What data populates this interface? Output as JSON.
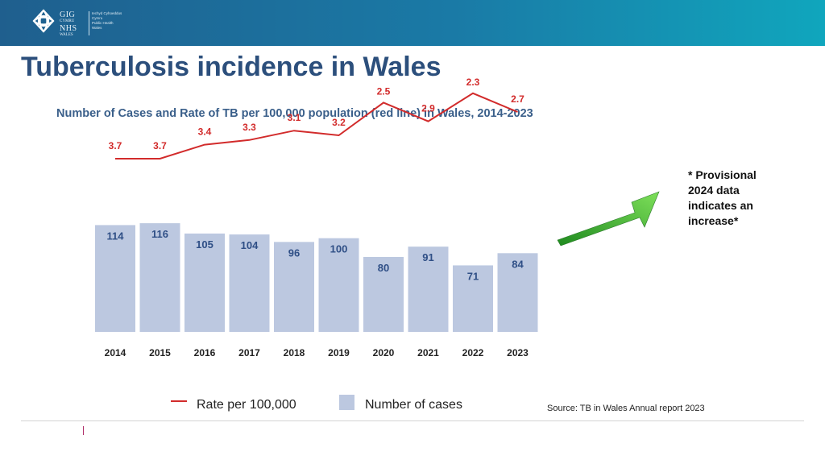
{
  "header": {
    "logo_left_lines": [
      "GIG",
      "CYMRU",
      "NHS",
      "WALES"
    ],
    "logo_right_lines": [
      "Iechyd Cyhoeddus",
      "Cymru",
      "Public Health",
      "Wales"
    ]
  },
  "page_title": "Tuberculosis incidence in Wales",
  "note": "* Provisional 2024 data indicates an increase*",
  "source": "Source: TB in Wales Annual report 2023",
  "colors": {
    "bar": "#bcc8e0",
    "bar_label": "#2f4f86",
    "line": "#d22b2b",
    "arrow_start": "#1f8a1f",
    "arrow_end": "#7ee05a"
  },
  "chart_data": {
    "type": "bar",
    "title": "Number of Cases and Rate of TB per 100,000 population (red line) in Wales, 2014-2023",
    "categories": [
      "2014",
      "2015",
      "2016",
      "2017",
      "2018",
      "2019",
      "2020",
      "2021",
      "2022",
      "2023"
    ],
    "series": [
      {
        "name": "Number of cases",
        "type": "bar",
        "values": [
          114,
          116,
          105,
          104,
          96,
          100,
          80,
          91,
          71,
          84
        ]
      },
      {
        "name": "Rate per 100,000",
        "type": "line",
        "values": [
          3.7,
          3.7,
          3.4,
          3.3,
          3.1,
          3.2,
          2.5,
          2.9,
          2.3,
          2.7
        ]
      }
    ],
    "legend_position": "bottom",
    "grid": false,
    "xlabel": "",
    "ylabel": ""
  }
}
